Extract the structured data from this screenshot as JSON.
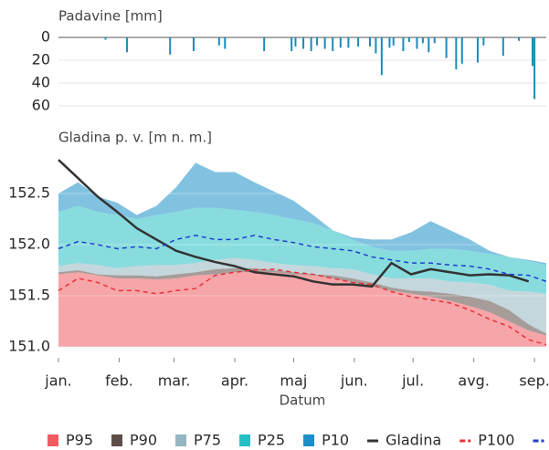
{
  "chart_data": [
    {
      "type": "bar",
      "title": "Padavine [mm]",
      "color": "#1b8bb9",
      "y_inverted": true,
      "grid": true,
      "xlim": [
        1,
        250
      ],
      "ylim": [
        0,
        60
      ],
      "yticks": [
        0,
        20,
        40,
        60
      ],
      "x": [
        25,
        36,
        58,
        70,
        83,
        86,
        106,
        120,
        122,
        126,
        130,
        133,
        137,
        141,
        145,
        149,
        154,
        160,
        163,
        166,
        170,
        172,
        177,
        180,
        184,
        187,
        190,
        193,
        199,
        204,
        207,
        215,
        218,
        228,
        236,
        243,
        244
      ],
      "values": [
        2,
        13,
        15,
        12,
        7,
        10,
        12,
        12,
        8,
        10,
        12,
        7,
        10,
        12,
        9,
        9,
        8,
        8,
        14,
        33,
        9,
        7,
        12,
        4,
        10,
        5,
        13,
        5,
        18,
        28,
        23,
        22,
        7,
        16,
        3,
        25,
        54
      ]
    },
    {
      "type": "area",
      "title": "Gladina p. v. [m n. m.]",
      "x_label": "Datum",
      "grid": true,
      "xlim": [
        1,
        250
      ],
      "ylim": [
        151.0,
        153.0
      ],
      "xticks": [
        {
          "value": 1,
          "label": "jan."
        },
        {
          "value": 32,
          "label": "feb."
        },
        {
          "value": 60,
          "label": "mar."
        },
        {
          "value": 91,
          "label": "apr."
        },
        {
          "value": 121,
          "label": "maj"
        },
        {
          "value": 152,
          "label": "jun."
        },
        {
          "value": 182,
          "label": "jul."
        },
        {
          "value": 213,
          "label": "avg."
        },
        {
          "value": 244,
          "label": "sep."
        }
      ],
      "yticks": [
        {
          "value": 151.0,
          "label": "151.0"
        },
        {
          "value": 151.5,
          "label": "151.5"
        },
        {
          "value": 152.0,
          "label": "152.0"
        },
        {
          "value": 152.5,
          "label": "152.5"
        }
      ],
      "x": [
        1,
        11,
        21,
        31,
        41,
        51,
        61,
        71,
        81,
        91,
        101,
        111,
        121,
        131,
        141,
        151,
        161,
        171,
        181,
        191,
        201,
        211,
        221,
        231,
        241,
        250
      ],
      "series": [
        {
          "name": "P95",
          "style": "band",
          "color": "#ef5b61",
          "values": [
            151.71,
            151.73,
            151.7,
            151.67,
            151.67,
            151.66,
            151.67,
            151.7,
            151.71,
            151.73,
            151.73,
            151.73,
            151.71,
            151.7,
            151.67,
            151.63,
            151.59,
            151.55,
            151.52,
            151.49,
            151.45,
            151.4,
            151.34,
            151.25,
            151.16,
            151.11
          ]
        },
        {
          "name": "P90",
          "style": "band",
          "color": "#5d4d48",
          "values": [
            151.73,
            151.75,
            151.71,
            151.7,
            151.7,
            151.69,
            151.71,
            151.73,
            151.76,
            151.77,
            151.77,
            151.75,
            151.73,
            151.71,
            151.7,
            151.67,
            151.63,
            151.58,
            151.55,
            151.54,
            151.52,
            151.49,
            151.45,
            151.36,
            151.22,
            151.13
          ]
        },
        {
          "name": "P75",
          "style": "band",
          "color": "#93b6c0",
          "values": [
            151.79,
            151.82,
            151.8,
            151.77,
            151.79,
            151.8,
            151.8,
            151.82,
            151.85,
            151.87,
            151.85,
            151.82,
            151.8,
            151.79,
            151.77,
            151.76,
            151.71,
            151.67,
            151.67,
            151.67,
            151.64,
            151.63,
            151.61,
            151.55,
            151.54,
            151.52
          ]
        },
        {
          "name": "P25",
          "style": "band",
          "color": "#26bfc3",
          "values": [
            152.32,
            152.38,
            152.32,
            152.29,
            152.25,
            152.29,
            152.32,
            152.36,
            152.36,
            152.34,
            152.32,
            152.29,
            152.25,
            152.21,
            152.14,
            152.05,
            151.98,
            151.94,
            151.94,
            151.96,
            151.96,
            151.94,
            151.91,
            151.88,
            151.84,
            151.8
          ]
        },
        {
          "name": "P10",
          "style": "band",
          "color": "#1c8fc9",
          "values": [
            152.5,
            152.61,
            152.47,
            152.41,
            152.29,
            152.38,
            152.56,
            152.8,
            152.71,
            152.71,
            152.61,
            152.52,
            152.43,
            152.29,
            152.14,
            152.07,
            152.05,
            152.05,
            152.12,
            152.23,
            152.14,
            152.05,
            151.94,
            151.88,
            151.85,
            151.82
          ]
        },
        {
          "name": "Gladina",
          "style": "line",
          "color": "#333333",
          "values": [
            152.83,
            152.65,
            152.47,
            152.32,
            152.16,
            152.05,
            151.94,
            151.88,
            151.83,
            151.79,
            151.73,
            151.71,
            151.69,
            151.64,
            151.61,
            151.61,
            151.59,
            151.82,
            151.71,
            151.76,
            151.73,
            151.7,
            151.71,
            151.7,
            151.64,
            null
          ]
        },
        {
          "name": "P100",
          "style": "dash",
          "color": "#e8333a",
          "values": [
            151.55,
            151.67,
            151.63,
            151.55,
            151.55,
            151.52,
            151.55,
            151.57,
            151.7,
            151.73,
            151.75,
            151.76,
            151.73,
            151.71,
            151.67,
            151.63,
            151.61,
            151.54,
            151.49,
            151.46,
            151.43,
            151.36,
            151.27,
            151.2,
            151.07,
            151.02
          ]
        },
        {
          "name": "P50",
          "style": "dash",
          "color": "#1f3fd1",
          "values": [
            151.96,
            152.03,
            152.0,
            151.96,
            151.98,
            151.96,
            152.05,
            152.09,
            152.05,
            152.05,
            152.09,
            152.05,
            152.02,
            151.98,
            151.96,
            151.94,
            151.88,
            151.85,
            151.82,
            151.82,
            151.8,
            151.79,
            151.76,
            151.71,
            151.7,
            151.64
          ]
        }
      ]
    }
  ]
}
